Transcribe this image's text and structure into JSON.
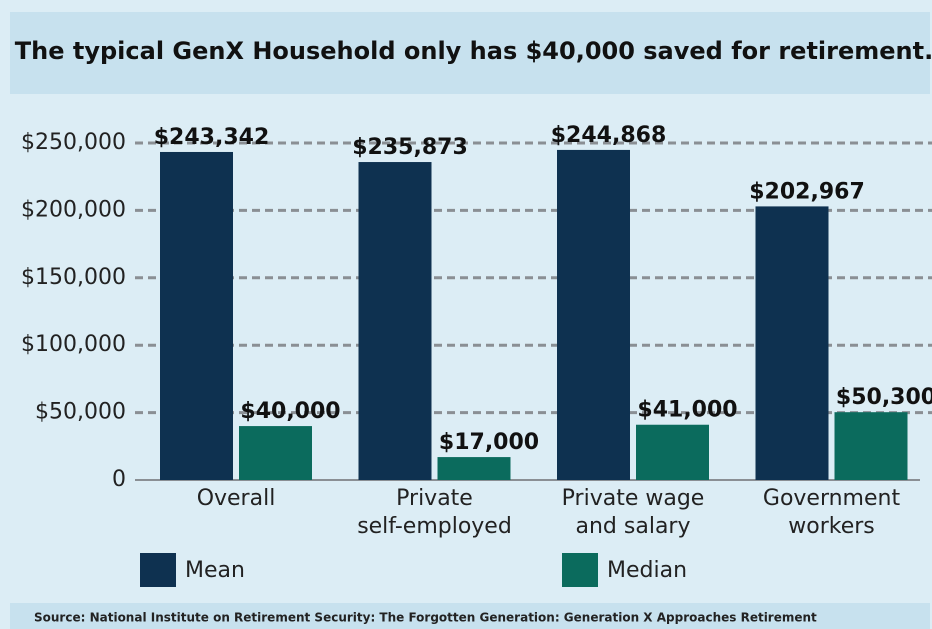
{
  "chart_data": {
    "type": "bar",
    "title": "The typical GenX Household only has $40,000 saved for retirement.",
    "categories": [
      [
        "Overall"
      ],
      [
        "Private",
        "self-employed"
      ],
      [
        "Private wage",
        "and salary"
      ],
      [
        "Government",
        "workers"
      ]
    ],
    "series": [
      {
        "name": "Mean",
        "color": "#0e3150",
        "values": [
          243342,
          235873,
          244868,
          202967
        ],
        "value_labels": [
          "$243,342",
          "$235,873",
          "$244,868",
          "$202,967"
        ]
      },
      {
        "name": "Median",
        "color": "#0b6b5d",
        "values": [
          40000,
          17000,
          41000,
          50300
        ],
        "value_labels": [
          "$40,000",
          "$17,000",
          "$41,000",
          "$50,300"
        ]
      }
    ],
    "ylim": [
      0,
      250000
    ],
    "yticks": [
      0,
      {
        "value": 50000,
        "label": "$50,000"
      },
      {
        "value": 100000,
        "label": "$100,000"
      },
      {
        "value": 150000,
        "label": "$150,000"
      },
      {
        "value": 200000,
        "label": "$200,000"
      },
      {
        "value": 250000,
        "label": "$250,000"
      }
    ],
    "grid": true,
    "legend": "bottom",
    "source": "Source: National Institute on Retirement Security: The Forgotten Generation: Generation X Approaches Retirement"
  }
}
